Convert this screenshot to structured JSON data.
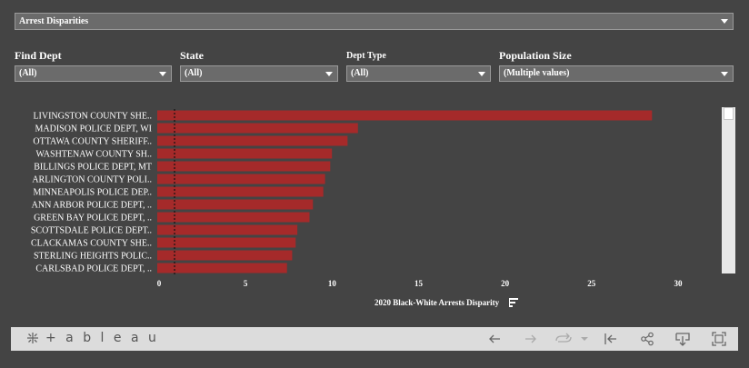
{
  "view_selector": {
    "value": "Arrest Disparities"
  },
  "filters": [
    {
      "label": "Find Dept",
      "value": "(All)"
    },
    {
      "label": "State",
      "value": "(All)"
    },
    {
      "label": "Dept Type",
      "value": "(All)"
    },
    {
      "label": "Population Size",
      "value": "(Multiple values)"
    }
  ],
  "chart_data": {
    "type": "bar",
    "orientation": "horizontal",
    "xlabel": "2020 Black-White Arrests Disparity",
    "ylabel": "",
    "xlim": [
      0,
      32
    ],
    "xticks": [
      0,
      5,
      10,
      15,
      20,
      25,
      30
    ],
    "reference_line": 1,
    "categories": [
      "LIVINGSTON COUNTY SHE..",
      "MADISON POLICE DEPT, WI",
      "OTTAWA COUNTY SHERIFF..",
      "WASHTENAW COUNTY SH..",
      "BILLINGS POLICE DEPT, MT",
      "ARLINGTON COUNTY POLI..",
      "MINNEAPOLIS POLICE DEP..",
      "ANN ARBOR POLICE DEPT, ..",
      "GREEN BAY POLICE DEPT, ..",
      "SCOTTSDALE POLICE DEPT..",
      "CLACKAMAS COUNTY SHE..",
      "STERLING HEIGHTS POLIC..",
      "CARLSBAD POLICE DEPT, .."
    ],
    "values": [
      28.6,
      11.6,
      11.0,
      10.1,
      10.0,
      9.7,
      9.6,
      9.0,
      8.8,
      8.1,
      8.0,
      7.8,
      7.5
    ],
    "bar_color": "#a52a2a"
  },
  "toolbar": {
    "logo_text": "+ a b l e a u",
    "icons": [
      "undo-icon",
      "redo-icon",
      "revert-icon",
      "revert-dropdown-icon",
      "reset-icon",
      "share-icon",
      "download-icon",
      "fullscreen-icon"
    ]
  }
}
